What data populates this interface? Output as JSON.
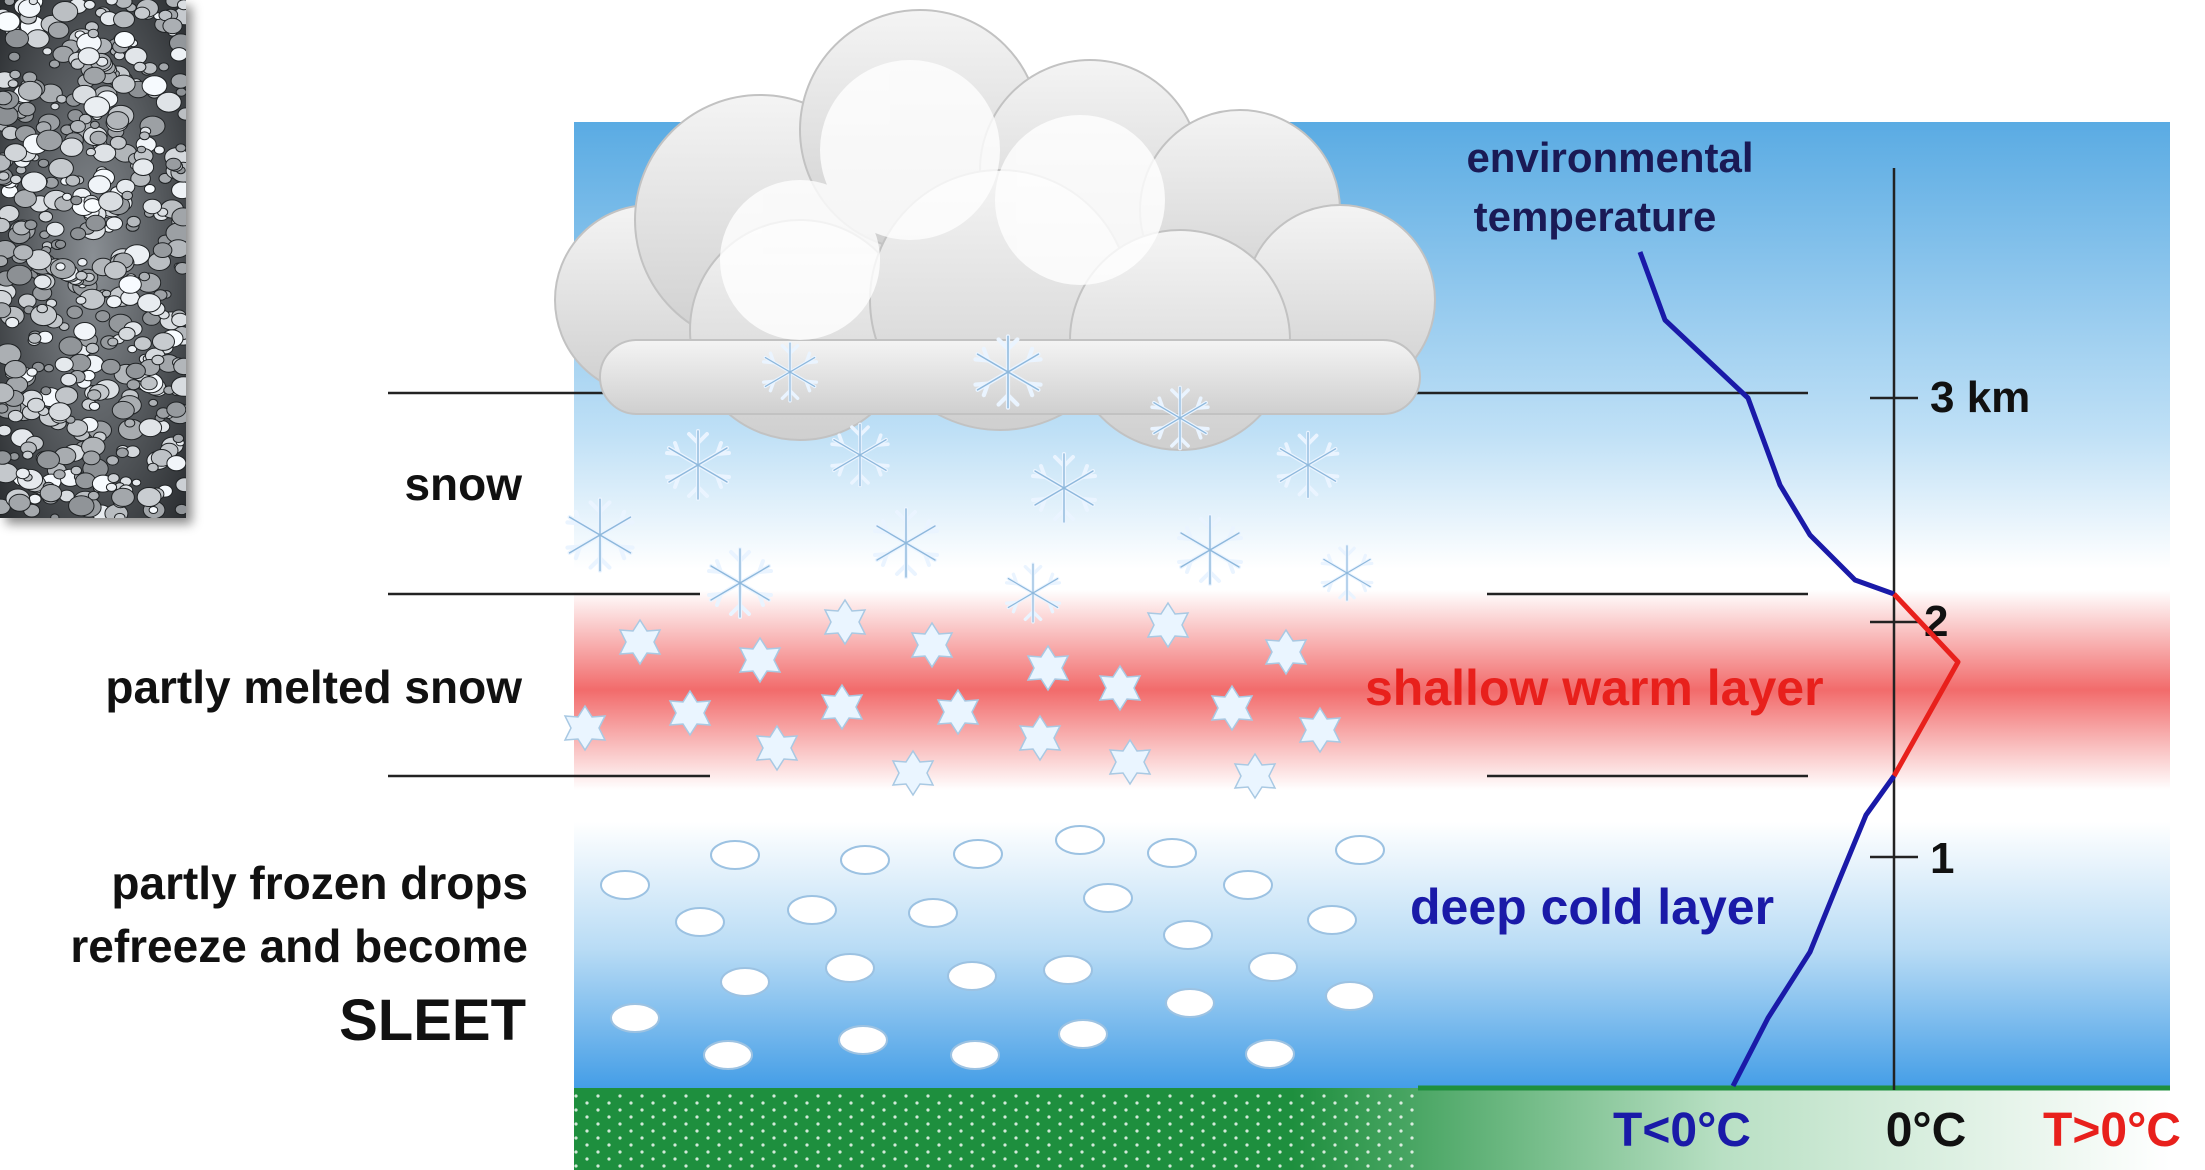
{
  "labels": {
    "snow": "snow",
    "melted": "partly melted snow",
    "frozen_line1": "partly frozen drops",
    "frozen_line2": "refreeze and become",
    "sleet": "SLEET",
    "env_line1": "environmental",
    "env_line2": "temperature",
    "warm_layer": "shallow warm layer",
    "cold_layer": "deep cold layer"
  },
  "altitude_axis": {
    "ticks": [
      {
        "label": "3 km"
      },
      {
        "label": "2"
      },
      {
        "label": "1"
      }
    ]
  },
  "temperature_axis": {
    "cold": "T<0°C",
    "zero": "0°C",
    "warm": "T>0°C"
  },
  "colors": {
    "sky_top": "#5aabe3",
    "sky_mid": "#ffffff",
    "warm_band": "#f26b6b",
    "cold_text": "#1a1aa8",
    "warm_text": "#e8201c",
    "ground": "#1e8f3e",
    "profile_cold": "#1a1aa8",
    "profile_warm": "#e8201c"
  },
  "icons": {
    "photo": "sleet-pellets-photo",
    "cloud": "cloud-icon",
    "snowflake": "snowflake-icon",
    "melted": "melted-snowflake-icon",
    "pellet": "ice-pellet-icon"
  }
}
